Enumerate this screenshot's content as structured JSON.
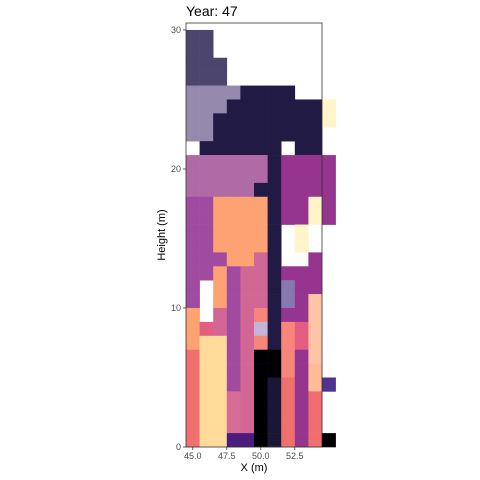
{
  "chart_data": {
    "type": "heatmap",
    "title": "Year: 47",
    "xlabel": "X (m)",
    "ylabel": "Height (m)",
    "xlim": [
      44.5,
      54.5
    ],
    "ylim": [
      0,
      30.5
    ],
    "x_ticks": [
      45.0,
      47.5,
      50.0,
      52.5
    ],
    "x_tick_labels": [
      "45.0",
      "47.5",
      "50.0",
      "52.5"
    ],
    "y_ticks": [
      0,
      10,
      20,
      30
    ],
    "y_tick_labels": [
      "0",
      "10",
      "20",
      "30"
    ],
    "grid": false,
    "legend": "none",
    "cell_width": 1,
    "cell_height": 1,
    "colors": {
      "a": "#4c456e",
      "b": "#948aad",
      "c": "#201a45",
      "d": "#b06aa6",
      "e": "#a04ba0",
      "f": "#fca273",
      "g": "#96358f",
      "h": "#d26796",
      "i": "#f8857a",
      "j": "#fff5c8",
      "k": "#ffd9a9",
      "l": "#8878b0",
      "m": "#ffc3a6",
      "n": "#ffdb9a",
      "o": "#e25e83",
      "p": "#f0706e",
      "q": "#000004",
      "r": "#1e1840",
      "s": "#4b1b7d",
      "t": "#c2b5d5",
      "u": "#d76d96",
      "v": "#e86b84",
      "w": "#ffbc96",
      "x": "#ef6f70",
      "y": "#50328f",
      "z": "#1a1638"
    },
    "rows_top_to_bottom_from_y27": [
      "aa.........",
      "aa.........",
      "aaa........",
      "aaa........",
      "bbbbcccc...",
      "bbbcccccccj",
      "bbccccccccj",
      "bbcccccccc.",
      ".cccccc.cc.",
      "ddddddcgggg",
      "ddddddcgggg",
      "dddddccgggg",
      "eeffffcggjg",
      "eeffffcggjg",
      "eeffffc.j..",
      "eeffffc.j..",
      "eeeffhc..g.",
      "eefehhcggg.",
      "e.fehhclgg.",
      "e.fehhclgm.",
      "f.hehicggm.",
      "fohehtciom.",
      "fnnehiciom.",
      "pnnehqqigm.",
      "pnnehqqigw.",
      "pnnehqzpgwy",
      "pnnuhqzpgx.",
      "pnnuhqzpgx.",
      "pnnuhqzpgx.",
      "pnnssqzpgxq"
    ]
  }
}
